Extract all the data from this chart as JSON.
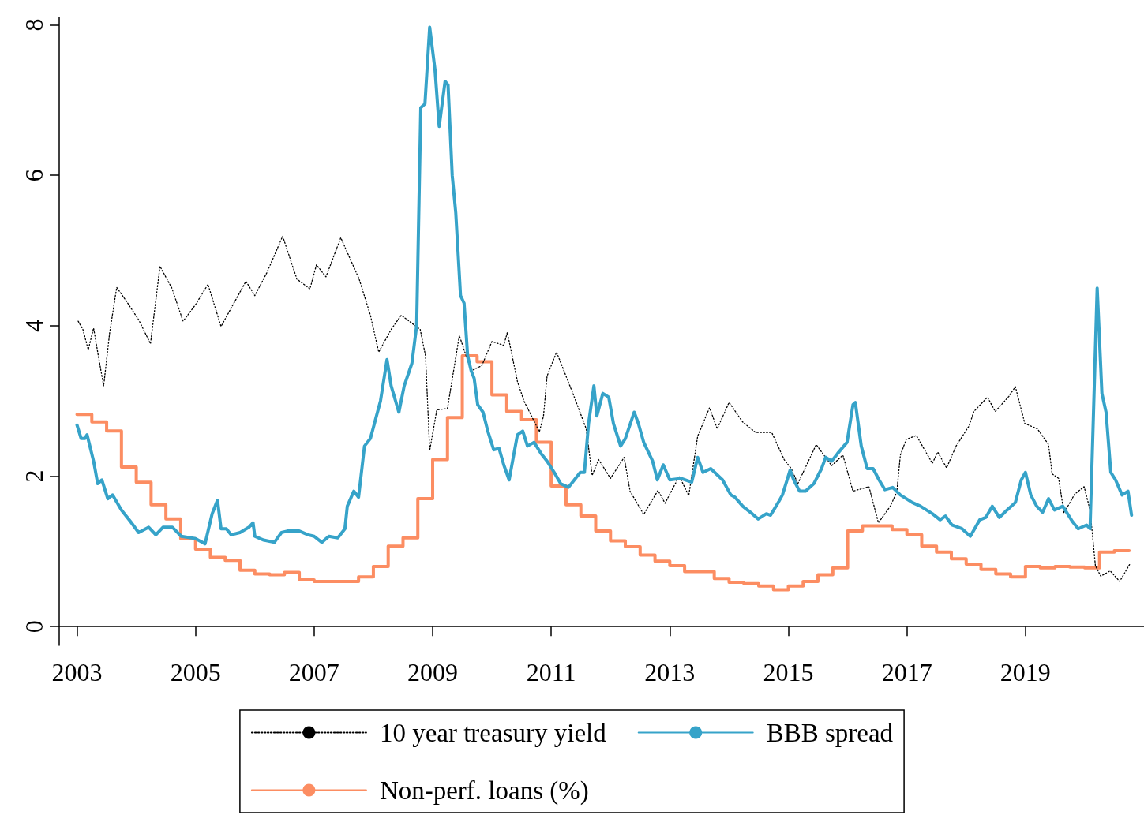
{
  "chart_data": {
    "type": "line",
    "xlim": [
      2002.7,
      2021.0
    ],
    "xticks": [
      2003,
      2005,
      2007,
      2009,
      2011,
      2013,
      2015,
      2017,
      2019
    ],
    "ylim": [
      -0.25,
      8.1
    ],
    "yticks": [
      0,
      2,
      4,
      6,
      8
    ],
    "grid": false,
    "legend": "bottom",
    "marker": "none",
    "series": [
      {
        "name": "10 year treasury yield",
        "line_style": "dotted",
        "color": "#000000",
        "x": [
          2003.02,
          2003.1,
          2003.19,
          2003.28,
          2003.36,
          2003.45,
          2003.55,
          2003.67,
          2003.83,
          2004.04,
          2004.24,
          2004.4,
          2004.6,
          2004.79,
          2005.0,
          2005.21,
          2005.43,
          2005.85,
          2006.0,
          2006.2,
          2006.47,
          2006.71,
          2006.93,
          2007.04,
          2007.2,
          2007.45,
          2007.76,
          2007.95,
          2008.09,
          2008.3,
          2008.47,
          2008.79,
          2008.88,
          2008.95,
          2009.07,
          2009.25,
          2009.45,
          2009.65,
          2009.83,
          2010.0,
          2010.2,
          2010.26,
          2010.43,
          2010.54,
          2010.8,
          2010.87,
          2010.93,
          2011.09,
          2011.39,
          2011.59,
          2011.69,
          2011.8,
          2012.0,
          2012.23,
          2012.33,
          2012.56,
          2012.8,
          2012.92,
          2013.16,
          2013.32,
          2013.47,
          2013.67,
          2013.8,
          2014.0,
          2014.23,
          2014.45,
          2014.72,
          2014.93,
          2015.05,
          2015.16,
          2015.47,
          2015.73,
          2015.92,
          2016.09,
          2016.36,
          2016.52,
          2016.72,
          2016.83,
          2016.89,
          2016.99,
          2017.16,
          2017.43,
          2017.52,
          2017.67,
          2017.83,
          2018.05,
          2018.13,
          2018.36,
          2018.49,
          2018.72,
          2018.83,
          2018.99,
          2019.2,
          2019.39,
          2019.45,
          2019.56,
          2019.65,
          2019.83,
          2019.99,
          2020.09,
          2020.18,
          2020.27,
          2020.43,
          2020.59,
          2020.76
        ],
        "values": [
          4.06,
          3.95,
          3.68,
          3.97,
          3.6,
          3.2,
          3.9,
          4.51,
          4.33,
          4.08,
          3.76,
          4.79,
          4.5,
          4.06,
          4.28,
          4.55,
          3.99,
          4.59,
          4.4,
          4.7,
          5.19,
          4.62,
          4.49,
          4.81,
          4.65,
          5.17,
          4.62,
          4.14,
          3.65,
          3.95,
          4.14,
          3.95,
          3.6,
          2.34,
          2.88,
          2.9,
          3.87,
          3.4,
          3.47,
          3.79,
          3.74,
          3.91,
          3.26,
          3.0,
          2.59,
          2.8,
          3.33,
          3.65,
          3.05,
          2.63,
          2.01,
          2.22,
          1.97,
          2.25,
          1.8,
          1.49,
          1.81,
          1.64,
          2.0,
          1.74,
          2.53,
          2.91,
          2.63,
          2.98,
          2.72,
          2.58,
          2.58,
          2.22,
          2.1,
          1.9,
          2.42,
          2.14,
          2.28,
          1.8,
          1.86,
          1.38,
          1.6,
          1.79,
          2.28,
          2.49,
          2.54,
          2.17,
          2.32,
          2.11,
          2.4,
          2.67,
          2.86,
          3.05,
          2.86,
          3.06,
          3.19,
          2.7,
          2.63,
          2.42,
          2.03,
          1.97,
          1.51,
          1.76,
          1.86,
          1.55,
          0.81,
          0.67,
          0.74,
          0.6,
          0.83
        ]
      },
      {
        "name": "BBB spread",
        "line_style": "solid",
        "color": "#36a3c9",
        "x": [
          2003.0,
          2003.07,
          2003.13,
          2003.17,
          2003.28,
          2003.35,
          2003.42,
          2003.52,
          2003.6,
          2003.75,
          2003.9,
          2004.04,
          2004.21,
          2004.33,
          2004.45,
          2004.61,
          2004.76,
          2005.0,
          2005.16,
          2005.28,
          2005.37,
          2005.43,
          2005.52,
          2005.6,
          2005.75,
          2005.9,
          2005.97,
          2006.0,
          2006.15,
          2006.33,
          2006.45,
          2006.55,
          2006.75,
          2006.9,
          2007.0,
          2007.13,
          2007.25,
          2007.4,
          2007.52,
          2007.56,
          2007.67,
          2007.75,
          2007.85,
          2007.95,
          2008.12,
          2008.23,
          2008.3,
          2008.43,
          2008.52,
          2008.65,
          2008.73,
          2008.8,
          2008.87,
          2008.95,
          2009.04,
          2009.11,
          2009.21,
          2009.26,
          2009.33,
          2009.39,
          2009.47,
          2009.53,
          2009.59,
          2009.65,
          2009.7,
          2009.76,
          2009.85,
          2009.93,
          2010.03,
          2010.12,
          2010.2,
          2010.29,
          2010.43,
          2010.52,
          2010.6,
          2010.71,
          2010.83,
          2010.93,
          2011.05,
          2011.16,
          2011.29,
          2011.39,
          2011.49,
          2011.56,
          2011.63,
          2011.72,
          2011.77,
          2011.87,
          2011.97,
          2012.05,
          2012.17,
          2012.25,
          2012.4,
          2012.47,
          2012.56,
          2012.71,
          2012.79,
          2012.89,
          2013.0,
          2013.19,
          2013.37,
          2013.47,
          2013.56,
          2013.69,
          2013.89,
          2014.03,
          2014.1,
          2014.23,
          2014.39,
          2014.49,
          2014.63,
          2014.7,
          2014.83,
          2014.9,
          2015.03,
          2015.09,
          2015.19,
          2015.29,
          2015.43,
          2015.56,
          2015.63,
          2015.73,
          2015.83,
          2015.99,
          2016.09,
          2016.13,
          2016.23,
          2016.33,
          2016.43,
          2016.53,
          2016.63,
          2016.76,
          2016.89,
          2017.09,
          2017.23,
          2017.43,
          2017.56,
          2017.65,
          2017.76,
          2017.93,
          2018.07,
          2018.23,
          2018.33,
          2018.44,
          2018.56,
          2018.69,
          2018.83,
          2018.93,
          2019.0,
          2019.09,
          2019.19,
          2019.29,
          2019.39,
          2019.49,
          2019.63,
          2019.79,
          2019.89,
          2020.03,
          2020.09,
          2020.21,
          2020.29,
          2020.36,
          2020.44,
          2020.52,
          2020.63,
          2020.73,
          2020.79
        ],
        "values": [
          2.68,
          2.5,
          2.5,
          2.55,
          2.2,
          1.9,
          1.95,
          1.7,
          1.75,
          1.55,
          1.4,
          1.25,
          1.32,
          1.22,
          1.32,
          1.32,
          1.2,
          1.17,
          1.1,
          1.5,
          1.68,
          1.3,
          1.3,
          1.22,
          1.25,
          1.32,
          1.38,
          1.2,
          1.15,
          1.12,
          1.25,
          1.27,
          1.27,
          1.22,
          1.2,
          1.12,
          1.2,
          1.18,
          1.3,
          1.6,
          1.8,
          1.72,
          2.4,
          2.5,
          3.0,
          3.55,
          3.2,
          2.85,
          3.2,
          3.5,
          4.0,
          6.9,
          6.95,
          7.97,
          7.4,
          6.65,
          7.25,
          7.2,
          6.0,
          5.5,
          4.4,
          4.3,
          3.6,
          3.4,
          3.3,
          2.95,
          2.85,
          2.6,
          2.35,
          2.37,
          2.15,
          1.95,
          2.55,
          2.6,
          2.4,
          2.45,
          2.3,
          2.2,
          2.05,
          1.9,
          1.85,
          1.95,
          2.05,
          2.05,
          2.7,
          3.2,
          2.8,
          3.1,
          3.05,
          2.7,
          2.4,
          2.5,
          2.85,
          2.7,
          2.45,
          2.2,
          1.95,
          2.15,
          1.95,
          1.97,
          1.92,
          2.25,
          2.05,
          2.1,
          1.95,
          1.75,
          1.72,
          1.6,
          1.5,
          1.43,
          1.5,
          1.48,
          1.65,
          1.75,
          2.08,
          1.95,
          1.8,
          1.8,
          1.9,
          2.1,
          2.25,
          2.2,
          2.3,
          2.45,
          2.95,
          2.98,
          2.4,
          2.1,
          2.1,
          1.95,
          1.82,
          1.85,
          1.75,
          1.65,
          1.6,
          1.5,
          1.42,
          1.47,
          1.35,
          1.3,
          1.2,
          1.42,
          1.45,
          1.6,
          1.45,
          1.55,
          1.65,
          1.95,
          2.05,
          1.75,
          1.6,
          1.52,
          1.7,
          1.55,
          1.6,
          1.4,
          1.3,
          1.35,
          1.3,
          4.5,
          3.1,
          2.85,
          2.05,
          1.95,
          1.75,
          1.8,
          1.48
        ]
      },
      {
        "name": "Non-perf. loans (%)",
        "type": "step",
        "line_style": "solid",
        "color": "#fc8d62",
        "x": [
          2003.0,
          2003.25,
          2003.5,
          2003.75,
          2004.0,
          2004.25,
          2004.5,
          2004.75,
          2005.0,
          2005.25,
          2005.5,
          2005.75,
          2006.0,
          2006.25,
          2006.5,
          2006.75,
          2007.0,
          2007.25,
          2007.5,
          2007.75,
          2008.0,
          2008.25,
          2008.5,
          2008.75,
          2009.0,
          2009.25,
          2009.5,
          2009.75,
          2010.0,
          2010.25,
          2010.5,
          2010.75,
          2011.0,
          2011.25,
          2011.5,
          2011.75,
          2012.0,
          2012.25,
          2012.5,
          2012.75,
          2013.0,
          2013.25,
          2013.5,
          2013.75,
          2014.0,
          2014.25,
          2014.5,
          2014.75,
          2015.0,
          2015.25,
          2015.5,
          2015.75,
          2016.0,
          2016.25,
          2016.5,
          2016.75,
          2017.0,
          2017.25,
          2017.5,
          2017.75,
          2018.0,
          2018.25,
          2018.5,
          2018.75,
          2019.0,
          2019.25,
          2019.5,
          2019.75,
          2020.0,
          2020.25,
          2020.5,
          2020.75
        ],
        "values": [
          2.82,
          2.72,
          2.6,
          2.12,
          1.92,
          1.62,
          1.43,
          1.17,
          1.03,
          0.92,
          0.88,
          0.75,
          0.7,
          0.69,
          0.72,
          0.62,
          0.6,
          0.6,
          0.6,
          0.66,
          0.8,
          1.07,
          1.18,
          1.7,
          2.22,
          2.78,
          3.6,
          3.52,
          3.08,
          2.86,
          2.75,
          2.45,
          1.87,
          1.62,
          1.47,
          1.27,
          1.14,
          1.06,
          0.95,
          0.87,
          0.81,
          0.73,
          0.73,
          0.64,
          0.59,
          0.57,
          0.54,
          0.49,
          0.54,
          0.6,
          0.69,
          0.78,
          1.27,
          1.34,
          1.34,
          1.29,
          1.22,
          1.07,
          0.99,
          0.9,
          0.83,
          0.76,
          0.7,
          0.66,
          0.8,
          0.78,
          0.8,
          0.79,
          0.78,
          0.99,
          1.01,
          1.01
        ]
      }
    ]
  }
}
